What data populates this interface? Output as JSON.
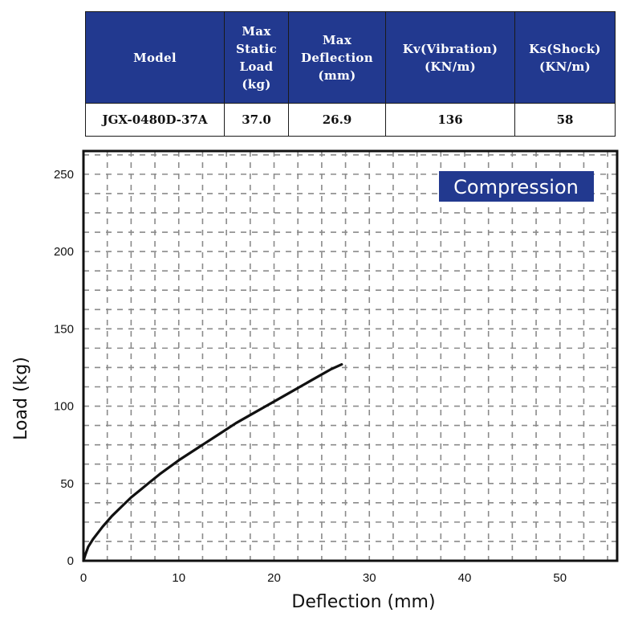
{
  "table": {
    "headers": [
      "Model",
      "Max\nStatic\nLoad\n(kg)",
      "Max\nDeflection\n(mm)",
      "Kv(Vibration)\n(KN/m)",
      "Ks(Shock)\n(KN/m)"
    ],
    "rows": [
      [
        "JGX-0480D-37A",
        "37.0",
        "26.9",
        "136",
        "58"
      ]
    ]
  },
  "colors": {
    "header_bg": "#22398f",
    "badge_bg": "#22398f",
    "curve": "#111111",
    "grid": "#8a8a8a"
  },
  "chart_data": {
    "type": "line",
    "title": "",
    "badge": "Compression",
    "xlabel": "Deflection (mm)",
    "ylabel": "Load (kg)",
    "xlim": [
      0,
      56
    ],
    "ylim": [
      0,
      265
    ],
    "xticks": [
      0,
      10,
      20,
      30,
      40,
      50
    ],
    "yticks": [
      0,
      50,
      100,
      150,
      200,
      250
    ],
    "grid": "dashed",
    "series": [
      {
        "values_x": [
          0,
          0.2,
          0.5,
          1,
          2,
          3,
          4,
          5,
          6,
          7,
          8,
          10,
          12,
          14,
          16,
          18,
          20,
          22,
          24,
          26,
          27.1
        ],
        "values_y": [
          0,
          4,
          9,
          14,
          22,
          29,
          35,
          41,
          46,
          51,
          56,
          65,
          73,
          81,
          89,
          96,
          103,
          110,
          117,
          124,
          127
        ]
      }
    ]
  }
}
